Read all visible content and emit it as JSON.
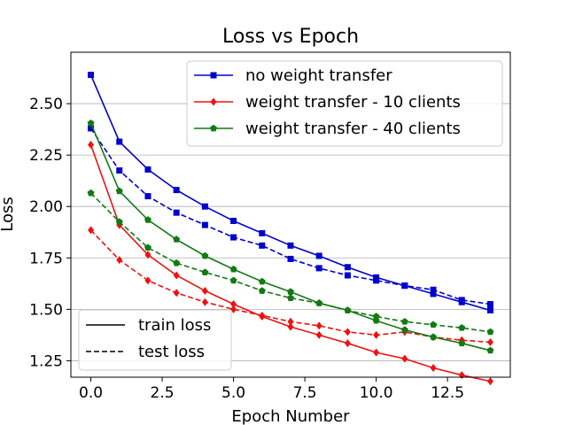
{
  "chart_data": {
    "type": "line",
    "title": "Loss vs Epoch",
    "xlabel": "Epoch Number",
    "ylabel": "Loss",
    "xlim": [
      -0.7,
      14.7
    ],
    "ylim": [
      1.17,
      2.75
    ],
    "xticks": [
      0,
      2.5,
      5,
      7.5,
      10,
      12.5
    ],
    "xtick_labels": [
      "0.0",
      "2.5",
      "5.0",
      "7.5",
      "10.0",
      "12.5"
    ],
    "yticks": [
      1.25,
      1.5,
      1.75,
      2.0,
      2.25,
      2.5
    ],
    "ytick_labels": [
      "1.25",
      "1.50",
      "1.75",
      "2.00",
      "2.25",
      "2.50"
    ],
    "grid": "horizontal",
    "x": [
      0,
      1,
      2,
      3,
      4,
      5,
      6,
      7,
      8,
      9,
      10,
      11,
      12,
      13,
      14
    ],
    "series": [
      {
        "name": "no weight transfer",
        "kind": "train",
        "color": "#0000cc",
        "marker": "square",
        "values": [
          2.64,
          2.315,
          2.18,
          2.08,
          2.0,
          1.93,
          1.87,
          1.81,
          1.76,
          1.705,
          1.655,
          1.615,
          1.575,
          1.535,
          1.495
        ]
      },
      {
        "name": "no weight transfer",
        "kind": "test",
        "color": "#0000cc",
        "marker": "square",
        "values": [
          2.38,
          2.175,
          2.05,
          1.97,
          1.91,
          1.85,
          1.81,
          1.745,
          1.7,
          1.665,
          1.64,
          1.615,
          1.595,
          1.545,
          1.525
        ]
      },
      {
        "name": "weight transfer - 10 clients",
        "kind": "train",
        "color": "#ee1111",
        "marker": "diamond",
        "values": [
          2.3,
          1.91,
          1.765,
          1.665,
          1.59,
          1.525,
          1.465,
          1.415,
          1.375,
          1.335,
          1.29,
          1.26,
          1.215,
          1.18,
          1.15
        ]
      },
      {
        "name": "weight transfer - 10 clients",
        "kind": "test",
        "color": "#ee1111",
        "marker": "diamond",
        "values": [
          1.885,
          1.74,
          1.64,
          1.58,
          1.535,
          1.5,
          1.47,
          1.44,
          1.42,
          1.39,
          1.375,
          1.39,
          1.365,
          1.35,
          1.34
        ]
      },
      {
        "name": "weight transfer - 40 clients",
        "kind": "train",
        "color": "#137a13",
        "marker": "pentagon",
        "values": [
          2.405,
          2.075,
          1.935,
          1.84,
          1.76,
          1.695,
          1.635,
          1.585,
          1.53,
          1.495,
          1.445,
          1.4,
          1.365,
          1.335,
          1.3
        ]
      },
      {
        "name": "weight transfer - 40 clients",
        "kind": "test",
        "color": "#137a13",
        "marker": "pentagon",
        "values": [
          2.065,
          1.925,
          1.8,
          1.725,
          1.68,
          1.64,
          1.59,
          1.555,
          1.53,
          1.495,
          1.465,
          1.44,
          1.425,
          1.41,
          1.39
        ]
      }
    ],
    "legend_series": {
      "location": "top-right",
      "entries": [
        {
          "label": "no weight transfer",
          "color": "#0000cc",
          "marker": "square"
        },
        {
          "label": "weight transfer - 10 clients",
          "color": "#ee1111",
          "marker": "diamond"
        },
        {
          "label": "weight transfer - 40 clients",
          "color": "#137a13",
          "marker": "pentagon"
        }
      ]
    },
    "legend_style": {
      "location": "bottom-left",
      "entries": [
        {
          "label": "train loss",
          "linestyle": "solid"
        },
        {
          "label": "test loss",
          "linestyle": "dashed"
        }
      ]
    }
  }
}
